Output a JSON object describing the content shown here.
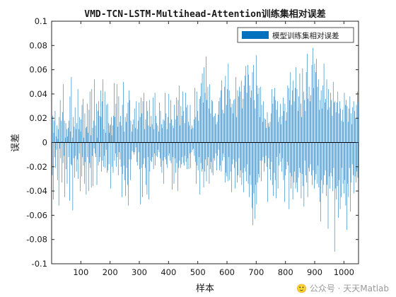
{
  "chart_data": {
    "type": "bar",
    "title": "VMD-TCN-LSTM-Multihead-Attention训练集相对误差",
    "xlabel": "样本",
    "ylabel": "误差",
    "xlim": [
      0,
      1050
    ],
    "ylim": [
      -0.1,
      0.1
    ],
    "x_ticks": [
      100,
      200,
      300,
      400,
      500,
      600,
      700,
      800,
      900,
      1000
    ],
    "y_ticks": [
      -0.1,
      -0.08,
      -0.06,
      -0.04,
      -0.02,
      0,
      0.02,
      0.04,
      0.06,
      0.08,
      0.1
    ],
    "y_tick_labels": [
      "-0.1",
      "-0.08",
      "-0.06",
      "-0.04",
      "-0.02",
      "0",
      "0.02",
      "0.04",
      "0.06",
      "0.08",
      "0.1"
    ],
    "legend_position": "top-right",
    "series": [
      {
        "name": "模型训练集相对误差",
        "color": "#0072BD",
        "values": [
          0.031,
          -0.027,
          0.022,
          -0.047,
          0.008,
          0.018,
          -0.012,
          0.026,
          -0.021,
          0.005,
          -0.006,
          0.014,
          -0.031,
          0.003,
          0.011,
          -0.052,
          0.021,
          -0.005,
          0.035,
          -0.013,
          0.018,
          0.001,
          -0.033,
          0.025,
          -0.017,
          0.048,
          -0.011,
          0.018,
          -0.045,
          0.004,
          0.016,
          -0.022,
          0.011,
          -0.034,
          0.005,
          0.012,
          -0.012,
          0.018,
          -0.048,
          0.038,
          0.009,
          -0.018,
          0.054,
          -0.019,
          0.004,
          -0.056,
          0.021,
          -0.013,
          0.013,
          -0.029,
          0.029,
          -0.011,
          0.011,
          -0.024,
          0.016,
          -0.014,
          0.044,
          -0.03,
          0.011,
          -0.009,
          0.021,
          -0.04,
          0.009,
          0.019,
          -0.028,
          0.031,
          -0.012,
          0.036,
          -0.019,
          0.004,
          -0.034,
          0.024,
          -0.016,
          0.012,
          -0.043,
          0.013,
          0.032,
          -0.012,
          0.008,
          -0.04,
          0.027,
          -0.017,
          0.042,
          -0.021,
          0.006,
          -0.037,
          0.044,
          -0.011,
          0.012,
          -0.036,
          0.018,
          -0.005,
          0.052,
          -0.009,
          0.014,
          -0.012,
          0.032,
          -0.035,
          0.004,
          0.026,
          -0.019,
          0.034,
          -0.016,
          0.022,
          -0.012,
          0.043,
          0.021,
          -0.024,
          0.034,
          -0.015,
          0.052,
          -0.02,
          0.011,
          -0.011,
          0.042,
          -0.021,
          0.008,
          -0.006,
          0.031,
          -0.025,
          0.032,
          -0.023,
          0.016,
          -0.018,
          0.008,
          0.014,
          0.015,
          -0.038,
          0.021,
          0.006,
          -0.02,
          0.014,
          -0.025,
          0.022,
          0.049,
          -0.015,
          0.021,
          -0.009,
          0.032,
          -0.02,
          0.048,
          -0.012,
          0.013,
          -0.027,
          0.038,
          -0.008,
          0.017,
          -0.014,
          0.022,
          -0.02,
          0.014,
          -0.045,
          0.031,
          -0.026,
          0.05,
          -0.019,
          0.009,
          -0.031,
          0.021,
          -0.044,
          0.017,
          -0.021,
          0.024,
          -0.035,
          0.033,
          -0.052,
          0.043,
          -0.014,
          0.035,
          -0.031,
          0.018,
          -0.014,
          0.009,
          -0.007,
          0.015,
          -0.008,
          0.019,
          -0.01,
          0.028,
          -0.008,
          0.012,
          -0.004,
          0.034,
          -0.016,
          0.011,
          -0.019,
          0.018,
          -0.008,
          0.033,
          -0.022,
          0.021,
          -0.051,
          0.037,
          -0.021,
          0.024,
          -0.045,
          0.034,
          -0.018,
          0.041,
          -0.013,
          0.011,
          -0.021,
          0.019,
          -0.035,
          0.034,
          -0.043,
          0.026,
          -0.012,
          0.014,
          -0.047,
          0.035,
          -0.024,
          0.013,
          -0.015,
          0.022,
          -0.016,
          0.015,
          -0.012,
          0.037,
          -0.022,
          0.011,
          -0.009,
          0.041,
          -0.019,
          0.022,
          -0.011,
          0.016,
          -0.012,
          0.014,
          -0.006,
          0.009,
          -0.008,
          0.033,
          -0.013,
          0.026,
          -0.02,
          0.015,
          -0.025,
          0.012,
          -0.015,
          0.019,
          -0.034,
          0.018,
          -0.012,
          0.041,
          -0.014,
          0.024,
          -0.018,
          0.011,
          -0.021,
          0.021,
          -0.011,
          0.04,
          -0.009,
          0.016,
          -0.015,
          0.035,
          -0.017,
          0.019,
          -0.039,
          0.014,
          -0.012,
          0.012,
          -0.034,
          0.031,
          -0.013,
          0.019,
          -0.025,
          0.037,
          -0.017,
          0.022,
          -0.04,
          0.035,
          -0.021,
          0.047,
          -0.015,
          0.014,
          -0.021,
          0.03,
          -0.018,
          0.022,
          -0.012,
          0.042,
          -0.017,
          0.026,
          -0.019,
          0.016,
          -0.011,
          0.041,
          -0.016,
          0.029,
          -0.022,
          0.031,
          -0.013,
          0.017,
          -0.022,
          0.014,
          -0.009,
          0.031,
          -0.021,
          0.011,
          -0.008,
          0.014,
          -0.006,
          0.012,
          -0.005,
          0.019,
          -0.011,
          0.045,
          -0.016,
          0.021,
          -0.034,
          0.042,
          -0.019,
          0.026,
          -0.023,
          0.018,
          -0.012,
          0.036,
          -0.043,
          0.038,
          -0.017,
          0.049,
          -0.024,
          0.057,
          -0.022,
          0.033,
          -0.037,
          0.062,
          -0.024,
          0.041,
          -0.014,
          0.071,
          -0.032,
          0.035,
          -0.019,
          0.046,
          -0.012,
          0.028,
          -0.034,
          0.048,
          -0.022,
          0.024,
          -0.016,
          0.035,
          -0.025,
          0.034,
          -0.027,
          0.021,
          -0.013,
          0.022,
          -0.015,
          0.024,
          -0.009,
          0.015,
          -0.023,
          0.017,
          -0.011,
          0.023,
          -0.006,
          0.034,
          -0.023,
          0.037,
          -0.019,
          0.043,
          -0.024,
          0.051,
          -0.015,
          0.027,
          -0.009,
          0.024,
          -0.012,
          0.046,
          -0.033,
          0.055,
          -0.025,
          0.031,
          -0.028,
          0.044,
          -0.032,
          0.065,
          -0.012,
          0.043,
          -0.031,
          0.036,
          -0.024,
          0.029,
          -0.041,
          0.032,
          -0.018,
          0.024,
          -0.014,
          0.035,
          -0.021,
          0.036,
          -0.038,
          0.054,
          -0.016,
          0.021,
          -0.033,
          0.043,
          -0.027,
          0.038,
          -0.013,
          0.046,
          -0.029,
          0.042,
          -0.023,
          0.051,
          -0.035,
          0.028,
          -0.025,
          0.036,
          -0.041,
          0.047,
          -0.021,
          0.055,
          -0.024,
          0.063,
          -0.032,
          0.041,
          -0.018,
          0.064,
          -0.034,
          0.056,
          -0.045,
          0.047,
          -0.027,
          0.037,
          -0.035,
          0.043,
          -0.054,
          0.058,
          -0.068,
          0.064,
          -0.042,
          0.035,
          -0.063,
          0.028,
          -0.035,
          0.072,
          -0.051,
          0.047,
          -0.033,
          0.04,
          -0.026,
          0.045,
          -0.029,
          0.021,
          -0.015,
          0.046,
          -0.032,
          0.031,
          -0.015,
          0.017,
          -0.012,
          0.034,
          -0.024,
          0.02,
          -0.017,
          0.019,
          -0.011,
          0.012,
          -0.02,
          0.025,
          -0.049,
          0.016,
          -0.013,
          0.013,
          -0.022,
          0.017,
          -0.031,
          0.024,
          -0.016,
          0.044,
          -0.035,
          0.032,
          -0.044,
          0.038,
          -0.025,
          0.045,
          -0.031,
          0.035,
          -0.046,
          0.027,
          -0.012,
          0.034,
          -0.038,
          0.017,
          -0.019,
          0.021,
          -0.009,
          0.032,
          -0.016,
          0.015,
          -0.024,
          0.022,
          -0.013,
          0.037,
          -0.031,
          0.026,
          -0.049,
          0.032,
          -0.027,
          0.018,
          -0.022,
          0.025,
          -0.016,
          0.047,
          -0.019,
          0.045,
          -0.055,
          0.035,
          -0.025,
          0.058,
          -0.038,
          0.031,
          -0.028,
          0.043,
          -0.047,
          0.051,
          -0.033,
          0.034,
          -0.024,
          0.045,
          -0.038,
          0.062,
          -0.033,
          0.044,
          -0.041,
          0.026,
          -0.029,
          0.038,
          -0.021,
          0.057,
          -0.025,
          0.032,
          -0.046,
          0.021,
          -0.026,
          0.061,
          -0.036,
          0.042,
          -0.053,
          0.035,
          -0.015,
          0.026,
          -0.027,
          0.058,
          -0.033,
          0.073,
          -0.045,
          0.036,
          -0.021,
          0.046,
          -0.024,
          0.034,
          -0.018,
          0.039,
          -0.027,
          0.064,
          -0.035,
          0.078,
          -0.023,
          0.045,
          -0.038,
          0.065,
          -0.031,
          0.058,
          -0.026,
          0.069,
          -0.034,
          0.046,
          -0.019,
          0.052,
          -0.037,
          0.027,
          -0.049,
          0.035,
          -0.065,
          0.043,
          -0.031,
          0.028,
          -0.042,
          0.047,
          -0.035,
          0.065,
          -0.027,
          0.033,
          -0.023,
          0.036,
          -0.044,
          0.052,
          -0.035,
          0.027,
          -0.071,
          0.044,
          -0.028,
          0.029,
          -0.038,
          0.041,
          -0.025,
          0.035,
          -0.028,
          0.022,
          -0.04,
          0.05,
          -0.021,
          0.033,
          -0.09,
          0.034,
          -0.038,
          0.025,
          -0.047,
          0.033,
          -0.036,
          0.042,
          -0.062,
          0.024,
          -0.031,
          0.034,
          -0.055,
          0.028,
          -0.045,
          0.018,
          -0.021,
          0.027,
          -0.034,
          0.017,
          -0.042,
          0.041,
          -0.031,
          0.031,
          -0.052,
          0.035,
          -0.072,
          0.03,
          -0.034,
          0.017,
          -0.045,
          0.028,
          -0.021,
          0.038,
          -0.057,
          0.024,
          -0.033,
          0.015,
          -0.018,
          0.029,
          -0.027,
          0.034,
          -0.042,
          0.026,
          -0.028,
          0.02,
          -0.033,
          0.031,
          -0.024,
          0.042,
          -0.029,
          0.033
        ]
      }
    ]
  },
  "watermark": "🙂 公众号 · 天天Matlab"
}
